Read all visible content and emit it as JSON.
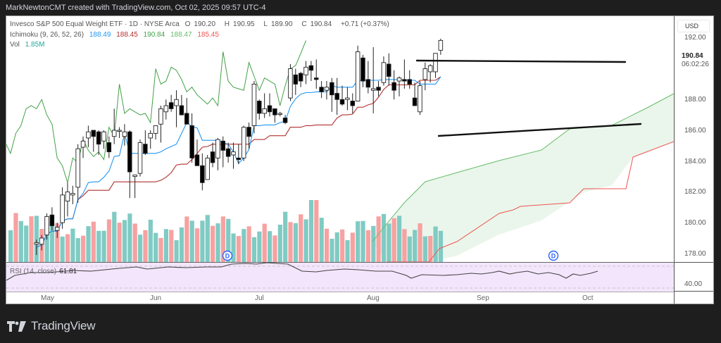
{
  "topbar": {
    "text": "MarkNewtonCMT created with TradingView.com, Oct 02, 2025 09:57 UTC-4"
  },
  "legend": {
    "symbol": "Invesco S&P 500 Equal Weight ETF · 1D · NYSE Arca",
    "open_label": "O",
    "open": "190.20",
    "high_label": "H",
    "high": "190.95",
    "low_label": "L",
    "low": "189.90",
    "close_label": "C",
    "close": "190.84",
    "change": "+0.71 (+0.37%)",
    "ichimoku_label": "Ichimoku (9, 26, 52, 26)",
    "ichimoku_values": [
      "188.49",
      "188.45",
      "190.84",
      "188.47",
      "185.45"
    ],
    "vol_label": "Vol",
    "vol_value": "1.85M"
  },
  "price_axis": {
    "currency": "USD",
    "ticks": [
      "192.00",
      "190.00",
      "188.00",
      "186.00",
      "184.00",
      "182.00",
      "180.00",
      "178.00"
    ],
    "last_price": "190.84",
    "countdown": "06:02:26"
  },
  "rsi": {
    "label": "RSI (14, close)",
    "value": "61.81",
    "axis_tick": "40.00"
  },
  "time_axis": {
    "labels": [
      "May",
      "Jun",
      "Jul",
      "Aug",
      "Sep",
      "Oct"
    ]
  },
  "footer": {
    "brand": "TradingView"
  },
  "colors": {
    "up_volume": "#80cbc4",
    "down_volume": "#f7a1a1",
    "tenkan": "#2196f3",
    "kijun": "#b2302f",
    "chikou": "#43a047",
    "senkou_a": "#66bb6a",
    "senkou_b": "#ef5350",
    "cloud": "#e8f5e9",
    "rsi_bg": "#f3e5fc",
    "rsi_line": "#444444",
    "trendline": "#111111"
  },
  "chart_data": {
    "type": "candlestick",
    "title": "Invesco S&P 500 Equal Weight ETF · 1D · NYSE Arca",
    "xlabel": "",
    "ylabel": "USD",
    "ylim": [
      177,
      192.5
    ],
    "x_tick_labels": [
      "May",
      "Jun",
      "Jul",
      "Aug",
      "Sep",
      "Oct"
    ],
    "y_tick_labels": [
      "178.00",
      "180.00",
      "182.00",
      "184.00",
      "186.00",
      "188.00",
      "190.00",
      "192.00"
    ],
    "last": {
      "open": 190.2,
      "high": 190.95,
      "low": 189.9,
      "close": 190.84,
      "change": 0.71,
      "change_pct": 0.37
    },
    "candles_visible_from": "late Jun",
    "candles": [
      [
        177.6,
        177.9,
        176.9,
        177.7
      ],
      [
        177.6,
        178.2,
        177.2,
        178.0
      ],
      [
        178.2,
        179.6,
        177.9,
        179.4
      ],
      [
        179.5,
        180.0,
        178.5,
        178.8
      ],
      [
        178.5,
        179.0,
        178.0,
        178.7
      ],
      [
        179.0,
        181.3,
        178.6,
        180.8
      ],
      [
        180.4,
        181.6,
        179.4,
        181.0
      ],
      [
        180.8,
        181.4,
        180.2,
        180.9
      ],
      [
        181.3,
        184.1,
        180.3,
        183.8
      ],
      [
        183.9,
        184.6,
        183.2,
        184.3
      ],
      [
        184.5,
        185.3,
        183.9,
        184.9
      ],
      [
        185.0,
        185.0,
        183.6,
        184.6
      ],
      [
        184.9,
        185.0,
        183.4,
        184.1
      ],
      [
        184.3,
        185.0,
        183.8,
        184.9
      ],
      [
        184.2,
        184.6,
        183.2,
        183.6
      ],
      [
        184.6,
        186.4,
        184.1,
        185.0
      ],
      [
        185.0,
        185.2,
        184.5,
        185.0
      ],
      [
        184.6,
        185.4,
        184.0,
        184.9
      ],
      [
        184.9,
        185.0,
        180.6,
        182.3
      ],
      [
        182.0,
        182.0,
        180.6,
        182.1
      ],
      [
        182.2,
        184.4,
        182.0,
        184.2
      ],
      [
        184.1,
        185.0,
        183.4,
        183.5
      ],
      [
        184.5,
        185.0,
        183.8,
        184.8
      ],
      [
        184.8,
        185.2,
        184.4,
        185.3
      ],
      [
        185.4,
        186.6,
        184.2,
        186.4
      ],
      [
        186.2,
        187.0,
        185.7,
        186.6
      ],
      [
        186.8,
        187.3,
        186.2,
        186.4
      ],
      [
        186.6,
        187.6,
        185.2,
        187.0
      ],
      [
        186.6,
        187.3,
        186.0,
        186.0
      ],
      [
        186.1,
        187.1,
        185.6,
        185.4
      ],
      [
        185.3,
        186.1,
        182.9,
        183.2
      ],
      [
        183.4,
        184.4,
        182.7,
        182.7
      ],
      [
        182.7,
        183.5,
        181.1,
        181.6
      ],
      [
        181.8,
        183.4,
        182.0,
        183.2
      ],
      [
        183.6,
        184.2,
        182.6,
        182.9
      ],
      [
        183.2,
        184.5,
        182.4,
        184.4
      ],
      [
        184.3,
        184.6,
        182.6,
        183.7
      ],
      [
        183.8,
        184.2,
        182.9,
        183.3
      ],
      [
        183.4,
        184.2,
        182.5,
        183.6
      ],
      [
        183.2,
        184.1,
        182.8,
        183.1
      ],
      [
        183.2,
        185.3,
        183.0,
        185.2
      ],
      [
        185.2,
        185.5,
        183.8,
        184.6
      ],
      [
        185.3,
        188.2,
        184.8,
        188.0
      ],
      [
        186.9,
        187.0,
        185.7,
        186.1
      ],
      [
        186.1,
        187.4,
        185.8,
        186.4
      ],
      [
        186.6,
        187.4,
        185.9,
        186.2
      ],
      [
        186.4,
        186.4,
        185.5,
        186.0
      ],
      [
        186.1,
        186.2,
        185.9,
        186.1
      ],
      [
        185.8,
        186.0,
        185.4,
        185.5
      ],
      [
        187.1,
        189.3,
        186.9,
        189.0
      ],
      [
        188.6,
        189.0,
        187.3,
        188.0
      ],
      [
        188.7,
        188.8,
        187.8,
        188.2
      ],
      [
        188.6,
        189.5,
        188.0,
        189.1
      ],
      [
        189.2,
        189.5,
        188.2,
        188.9
      ],
      [
        188.4,
        189.6,
        187.7,
        188.3
      ],
      [
        187.8,
        188.2,
        187.1,
        187.5
      ],
      [
        187.6,
        188.2,
        187.0,
        187.8
      ],
      [
        188.1,
        188.4,
        186.2,
        187.3
      ],
      [
        187.4,
        188.4,
        186.0,
        187.0
      ],
      [
        187.0,
        187.9,
        186.6,
        186.7
      ],
      [
        187.0,
        187.8,
        186.3,
        187.1
      ],
      [
        186.9,
        187.4,
        186.1,
        186.6
      ],
      [
        186.9,
        190.5,
        186.9,
        190.1
      ],
      [
        189.7,
        189.9,
        187.8,
        188.2
      ],
      [
        188.3,
        189.5,
        187.4,
        187.8
      ],
      [
        187.6,
        190.4,
        186.1,
        187.7
      ],
      [
        187.8,
        188.2,
        187.2,
        187.6
      ],
      [
        188.1,
        189.8,
        187.9,
        189.4
      ],
      [
        189.3,
        190.0,
        187.9,
        188.5
      ],
      [
        188.1,
        188.9,
        187.0,
        187.6
      ],
      [
        188.2,
        188.5,
        187.2,
        188.4
      ],
      [
        188.3,
        189.6,
        187.7,
        188.2
      ],
      [
        188.3,
        188.9,
        187.7,
        188.0
      ],
      [
        187.1,
        188.1,
        186.8,
        186.6
      ],
      [
        186.2,
        188.2,
        186.0,
        187.9
      ],
      [
        188.3,
        189.4,
        187.6,
        189.0
      ],
      [
        188.8,
        189.3,
        188.1,
        189.2
      ],
      [
        188.8,
        190.0,
        188.4,
        190.0
      ],
      [
        190.2,
        190.95,
        189.9,
        190.84
      ]
    ],
    "trendlines": [
      {
        "name": "resistance",
        "from": [
          592,
          86
        ],
        "to": [
          888,
          88
        ]
      },
      {
        "name": "support",
        "from": [
          623,
          193
        ],
        "to": [
          910,
          176
        ]
      }
    ],
    "volume_last": "1.85M",
    "rsi_last": 61.81
  }
}
